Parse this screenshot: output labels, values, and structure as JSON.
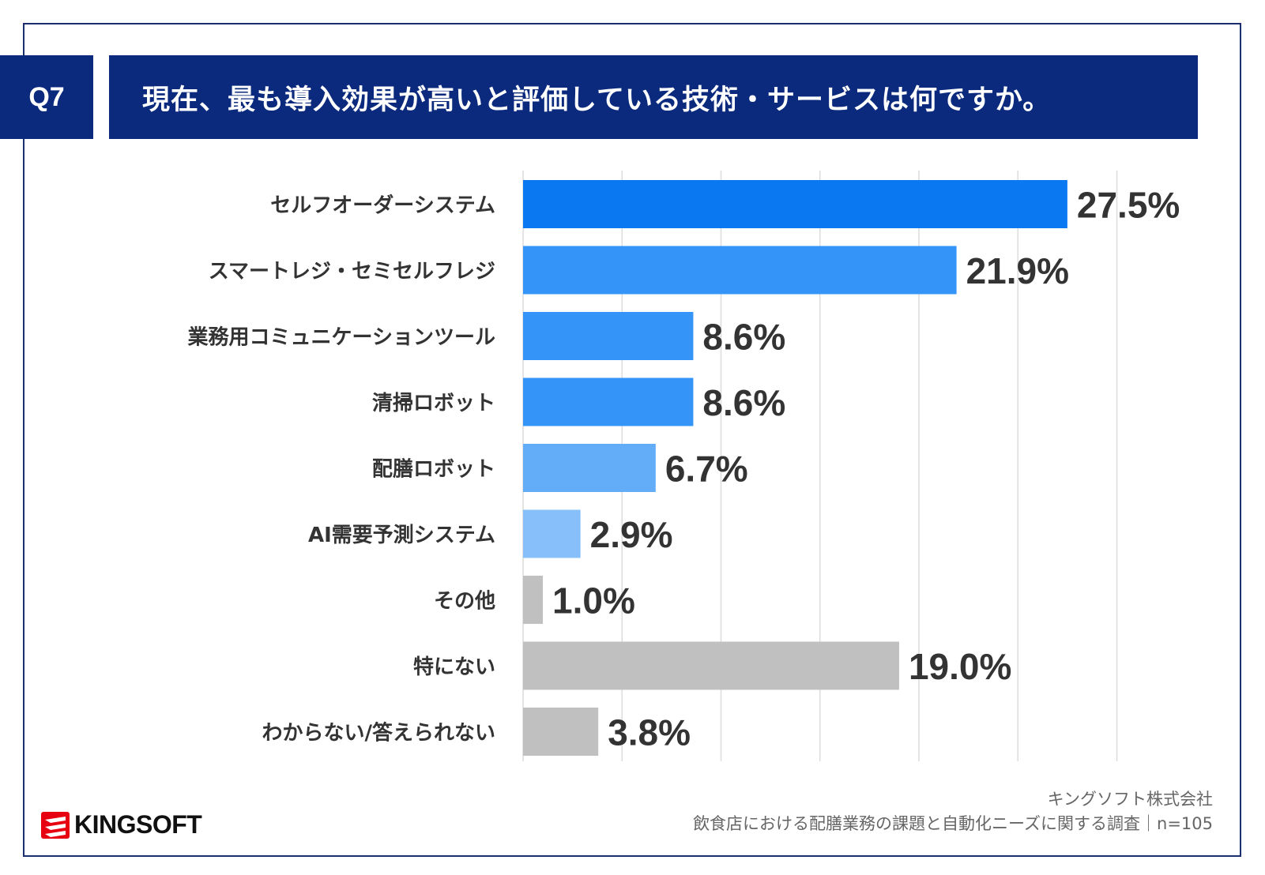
{
  "header": {
    "question_number": "Q7",
    "question_text": "現在、最も導入効果が高いと評価している技術・サービスは何ですか。"
  },
  "footer": {
    "company": "キングソフト株式会社",
    "survey": "飲食店における配膳業務の課題と自動化ニーズに関する調査｜n=105"
  },
  "logo": {
    "text": "KINGSOFT",
    "icon": "kingsoft-logo-icon",
    "color": "#e60012"
  },
  "chart_data": {
    "type": "bar",
    "orientation": "horizontal",
    "title": "",
    "xlabel": "",
    "ylabel": "",
    "xlim": [
      0,
      30
    ],
    "grid": true,
    "categories": [
      "セルフオーダーシステム",
      "スマートレジ・セミセルフレジ",
      "業務用コミュニケーションツール",
      "清掃ロボット",
      "配膳ロボット",
      "AI需要予測システム",
      "その他",
      "特にない",
      "わからない/答えられない"
    ],
    "values": [
      27.5,
      21.9,
      8.6,
      8.6,
      6.7,
      2.9,
      1.0,
      19.0,
      3.8
    ],
    "value_labels": [
      "27.5%",
      "21.9%",
      "8.6%",
      "8.6%",
      "6.7%",
      "2.9%",
      "1.0%",
      "19.0%",
      "3.8%"
    ],
    "colors": [
      "#0a78f0",
      "#3594f7",
      "#3594f7",
      "#3594f7",
      "#62acf8",
      "#86bff9",
      "#c0c0c0",
      "#c0c0c0",
      "#c0c0c0"
    ]
  }
}
